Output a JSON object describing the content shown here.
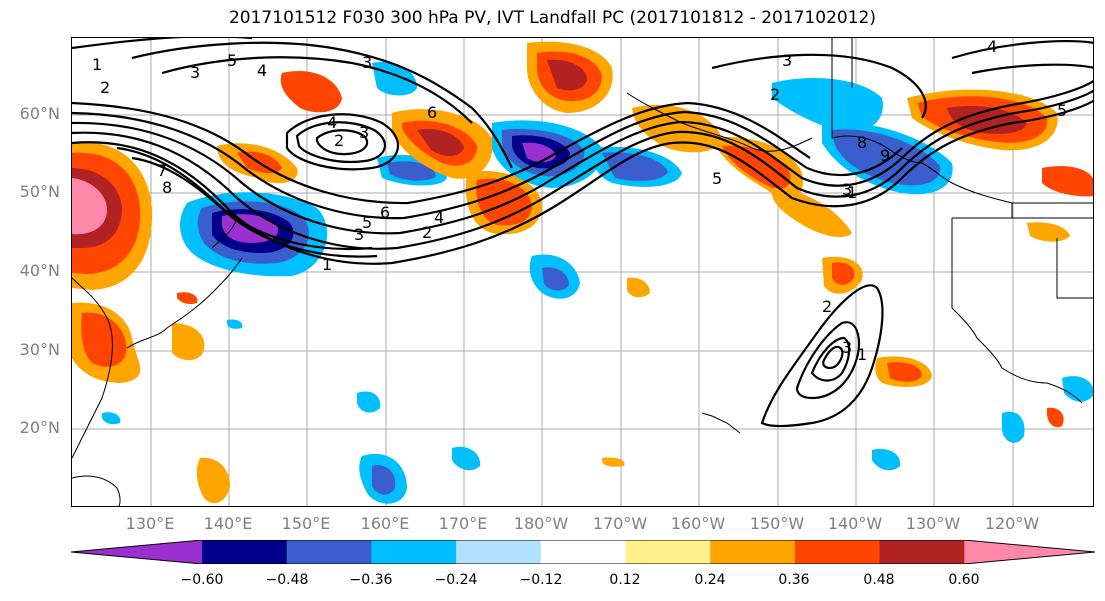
{
  "title": "2017101512 F030 300 hPa PV, IVT Landfall PC (2017101812 - 2017102012)",
  "latitude_labels": [
    "60°N",
    "50°N",
    "40°N",
    "30°N",
    "20°N"
  ],
  "longitude_labels": [
    "130°E",
    "140°E",
    "150°E",
    "160°E",
    "170°E",
    "180°W",
    "170°W",
    "160°W",
    "150°W",
    "140°W",
    "130°W",
    "120°W"
  ],
  "colorbar": {
    "tick_labels": [
      "−0.60",
      "−0.48",
      "−0.36",
      "−0.24",
      "−0.12",
      "0.12",
      "0.24",
      "0.36",
      "0.48",
      "0.60"
    ],
    "colors": [
      "#9b30d0",
      "#00008b",
      "#3a5fcd",
      "#00bfff",
      "#b0e0ff",
      "#ffffff",
      "#fff08c",
      "#ffa500",
      "#ff4500",
      "#b22222",
      "#ff88aa"
    ]
  },
  "contour_labels": [
    {
      "text": "1"
    },
    {
      "text": "2"
    },
    {
      "text": "3"
    },
    {
      "text": "4"
    },
    {
      "text": "5"
    },
    {
      "text": "4"
    },
    {
      "text": "2"
    },
    {
      "text": "3"
    },
    {
      "text": "6"
    },
    {
      "text": "7"
    },
    {
      "text": "8"
    },
    {
      "text": "5"
    },
    {
      "text": "6"
    },
    {
      "text": "4"
    },
    {
      "text": "3"
    },
    {
      "text": "2"
    },
    {
      "text": "1"
    },
    {
      "text": "3"
    },
    {
      "text": "5"
    },
    {
      "text": "3"
    },
    {
      "text": "2"
    },
    {
      "text": "8"
    },
    {
      "text": "9"
    },
    {
      "text": "4"
    },
    {
      "text": "3"
    },
    {
      "text": "5"
    },
    {
      "text": "1"
    },
    {
      "text": "2"
    },
    {
      "text": "1"
    },
    {
      "text": "3"
    }
  ]
}
